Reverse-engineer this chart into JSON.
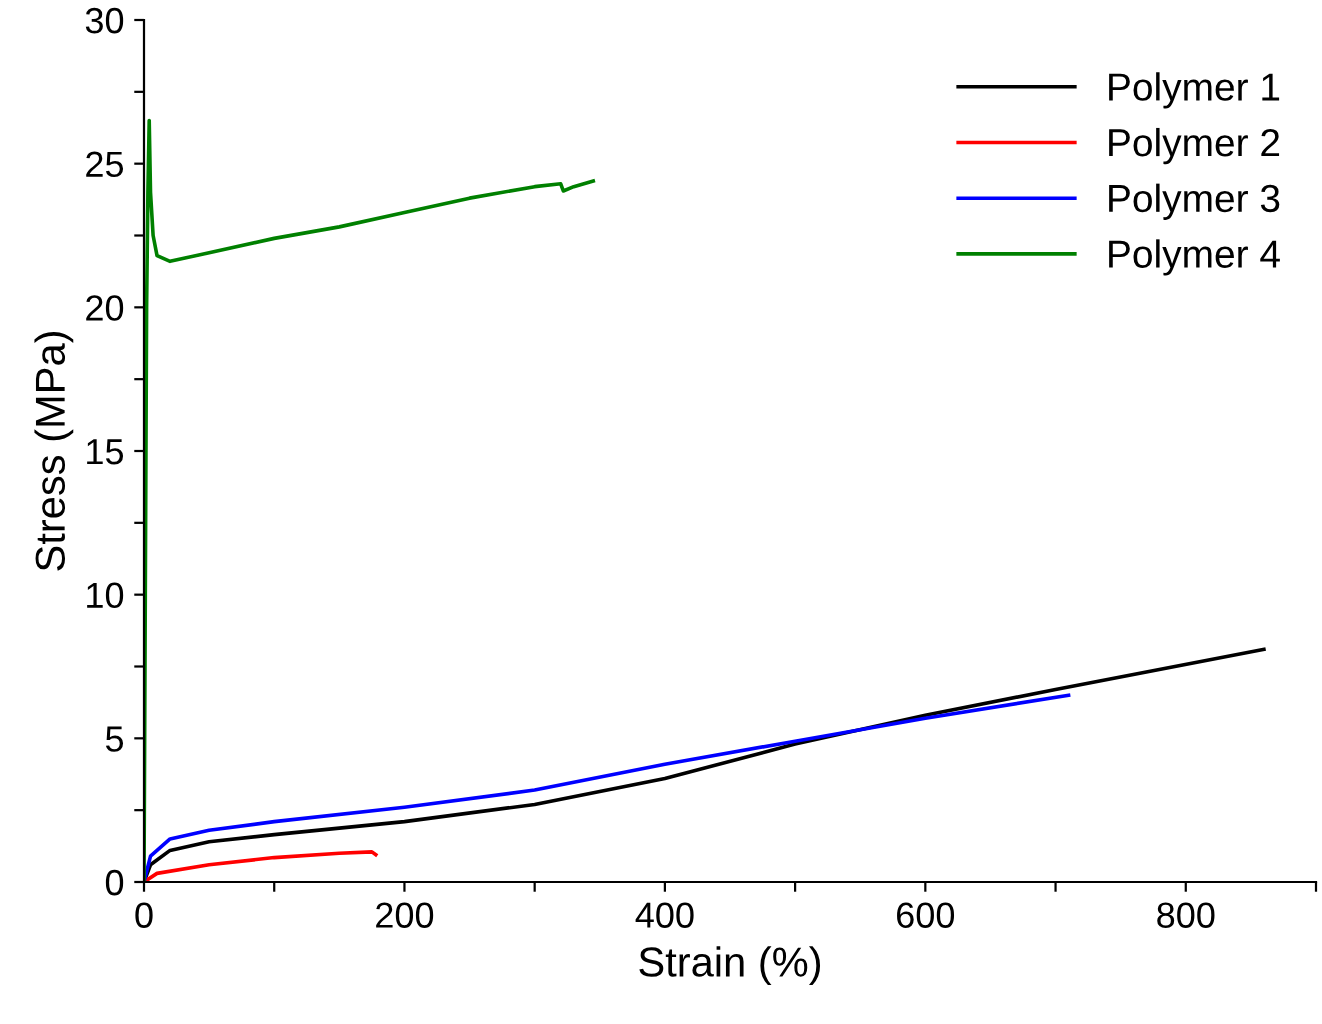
{
  "chart_data": {
    "type": "line",
    "xlabel": "Strain (%)",
    "ylabel": "Stress (MPa)",
    "xlim": [
      0,
      900
    ],
    "xticks": [
      0,
      {
        "value": 100,
        "label": null
      },
      200,
      {
        "value": 300,
        "label": null
      },
      400,
      {
        "value": 500,
        "label": null
      },
      600,
      {
        "value": 700,
        "label": null
      },
      800,
      {
        "value": 900,
        "label": null
      }
    ],
    "ylim": [
      0,
      30
    ],
    "yticks": [
      0,
      {
        "value": 2.5,
        "label": null
      },
      5,
      {
        "value": 7.5,
        "label": null
      },
      10,
      {
        "value": 12.5,
        "label": null
      },
      15,
      {
        "value": 17.5,
        "label": null
      },
      20,
      {
        "value": 22.5,
        "label": null
      },
      25,
      {
        "value": 27.5,
        "label": null
      },
      30
    ],
    "grid": false,
    "legend": "top right",
    "series": [
      {
        "name": "Polymer 1",
        "color": "#000000",
        "x": [
          0,
          5,
          20,
          50,
          100,
          200,
          300,
          400,
          500,
          600,
          700,
          860
        ],
        "values": [
          0,
          0.6,
          1.1,
          1.4,
          1.65,
          2.1,
          2.7,
          3.6,
          4.8,
          5.8,
          6.7,
          8.1
        ]
      },
      {
        "name": "Polymer 2",
        "color": "#ff0000",
        "x": [
          0,
          10,
          50,
          100,
          150,
          175,
          178
        ],
        "values": [
          0,
          0.3,
          0.6,
          0.85,
          1.0,
          1.05,
          0.95
        ]
      },
      {
        "name": "Polymer 3",
        "color": "#0000ff",
        "x": [
          0,
          5,
          20,
          50,
          100,
          200,
          300,
          400,
          500,
          600,
          710
        ],
        "values": [
          0,
          0.9,
          1.5,
          1.8,
          2.1,
          2.6,
          3.2,
          4.1,
          4.9,
          5.7,
          6.5
        ]
      },
      {
        "name": "Polymer 4",
        "color": "#008000",
        "x": [
          0,
          1,
          2,
          3,
          4,
          5,
          7,
          10,
          20,
          50,
          100,
          150,
          200,
          250,
          300,
          320,
          322,
          330,
          345
        ],
        "values": [
          0,
          10,
          20,
          24,
          26.5,
          24,
          22.5,
          21.8,
          21.6,
          21.9,
          22.4,
          22.8,
          23.3,
          23.8,
          24.2,
          24.3,
          24.05,
          24.2,
          24.4
        ]
      }
    ]
  }
}
